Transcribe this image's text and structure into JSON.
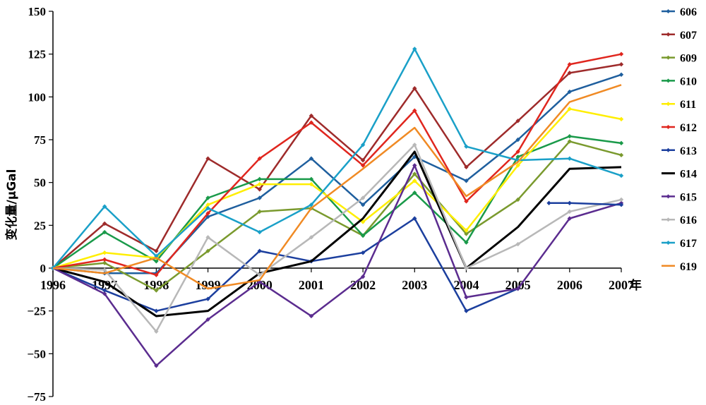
{
  "chart_data": {
    "type": "line",
    "title": "",
    "ylabel": "变化量/μGal",
    "xlabel_unit": "年",
    "x": [
      "1996",
      "1997",
      "1998",
      "1999",
      "2000",
      "2001",
      "2002",
      "2003",
      "2004",
      "2005",
      "2006",
      "2007"
    ],
    "ylim": [
      -75,
      150
    ],
    "yticks": [
      "150",
      "125",
      "100",
      "75",
      "50",
      "25",
      "0",
      "−25",
      "−50",
      "−75"
    ],
    "ytick_values": [
      150,
      125,
      100,
      75,
      50,
      25,
      0,
      -25,
      -50,
      -75
    ],
    "grid": false,
    "legend_position": "right",
    "series": [
      {
        "name": "606",
        "color": "#1f5f9e",
        "marker": true,
        "width": 2.5,
        "values": [
          0,
          -3,
          -3,
          30,
          41,
          64,
          37,
          65,
          51,
          75,
          103,
          113
        ]
      },
      {
        "name": "607",
        "color": "#9e2b2b",
        "marker": true,
        "width": 2.5,
        "values": [
          0,
          26,
          10,
          64,
          46,
          89,
          63,
          105,
          59,
          86,
          114,
          119
        ]
      },
      {
        "name": "609",
        "color": "#7a9a2e",
        "marker": true,
        "width": 2.5,
        "values": [
          0,
          3,
          -13,
          10,
          33,
          35,
          19,
          55,
          20,
          40,
          74,
          66
        ]
      },
      {
        "name": "610",
        "color": "#1a9a4a",
        "marker": true,
        "width": 2.5,
        "values": [
          0,
          21,
          4,
          41,
          52,
          52,
          19,
          44,
          15,
          65,
          77,
          73
        ]
      },
      {
        "name": "611",
        "color": "#ffee00",
        "marker": true,
        "width": 2.5,
        "values": [
          0,
          9,
          6,
          37,
          49,
          49,
          27,
          51,
          22,
          60,
          93,
          87
        ]
      },
      {
        "name": "612",
        "color": "#e0261e",
        "marker": true,
        "width": 2.5,
        "values": [
          0,
          5,
          -4,
          32,
          64,
          85,
          60,
          92,
          39,
          68,
          119,
          125
        ]
      },
      {
        "name": "613",
        "color": "#1c3f9e",
        "marker": true,
        "width": 2.5,
        "values": [
          0,
          -13,
          -25,
          -18,
          10,
          4,
          9,
          29,
          -25,
          -12,
          null,
          null
        ]
      },
      {
        "name": "614",
        "color": "#000000",
        "marker": false,
        "width": 3,
        "values": [
          0,
          -8,
          -28,
          -25,
          -3,
          4,
          29,
          68,
          0,
          24,
          58,
          59
        ]
      },
      {
        "name": "615",
        "color": "#5b2c8f",
        "marker": true,
        "width": 2.5,
        "values": [
          0,
          -15,
          -57,
          -30,
          -8,
          -28,
          -5,
          60,
          -17,
          -12,
          29,
          38
        ]
      },
      {
        "name": "616",
        "color": "#b8b8b8",
        "marker": true,
        "width": 2.5,
        "values": [
          0,
          -1,
          -37,
          18,
          -4,
          18,
          41,
          72,
          0,
          14,
          33,
          40
        ]
      },
      {
        "name": "617",
        "color": "#1aa0c8",
        "marker": true,
        "width": 2.5,
        "values": [
          0,
          36,
          7,
          35,
          21,
          37,
          72,
          128,
          71,
          63,
          64,
          54
        ]
      },
      {
        "name": "619",
        "color": "#f08a24",
        "marker": false,
        "width": 2.5,
        "values": [
          0,
          -3,
          6,
          -12,
          -7,
          35,
          58,
          82,
          42,
          62,
          97,
          107
        ]
      }
    ],
    "extra_segments": [
      {
        "series": "613",
        "color": "#1c3f9e",
        "points": [
          [
            2005.6,
            38
          ],
          [
            2006,
            38
          ],
          [
            2007,
            37
          ]
        ]
      }
    ]
  }
}
